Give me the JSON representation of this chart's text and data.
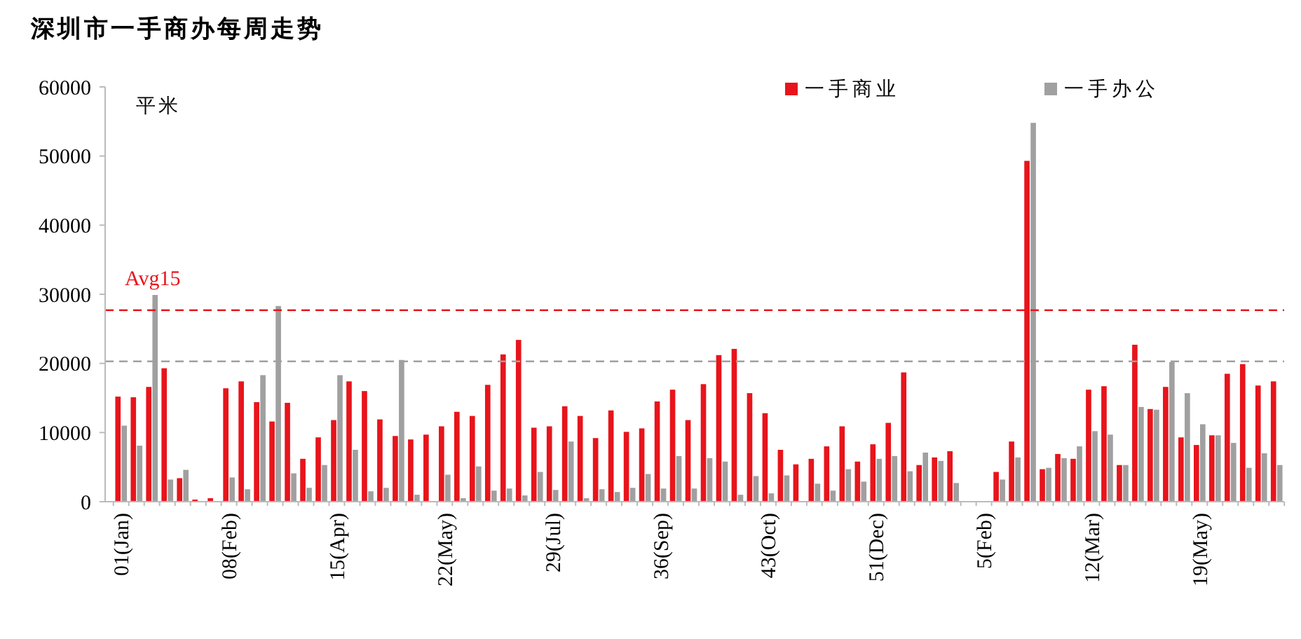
{
  "chart_data": {
    "type": "bar",
    "title": "深圳市一手商办每周走势",
    "ylabel": "平米",
    "categories": [
      "01(Jan)",
      null,
      null,
      null,
      null,
      null,
      null,
      "08(Feb)",
      null,
      null,
      null,
      null,
      null,
      null,
      "15(Apr)",
      null,
      null,
      null,
      null,
      null,
      null,
      "22(May)",
      null,
      null,
      null,
      null,
      null,
      null,
      "29(Jul)",
      null,
      null,
      null,
      null,
      null,
      null,
      "36(Sep)",
      null,
      null,
      null,
      null,
      null,
      null,
      "43(Oct)",
      null,
      null,
      null,
      null,
      null,
      null,
      "51(Dec)",
      null,
      null,
      null,
      null,
      null,
      null,
      "5(Feb)",
      null,
      null,
      null,
      null,
      null,
      null,
      "12(Mar)",
      null,
      null,
      null,
      null,
      null,
      null,
      "19(May)",
      null,
      null,
      null,
      null,
      null
    ],
    "series": [
      {
        "name": "一手商业",
        "color": "#e8141b",
        "values": [
          15200,
          15100,
          16600,
          19300,
          3400,
          300,
          500,
          16400,
          17400,
          14400,
          11600,
          14300,
          6200,
          9300,
          11800,
          17400,
          16000,
          11900,
          9500,
          9000,
          9700,
          10900,
          13000,
          12400,
          16900,
          21300,
          23400,
          10700,
          10900,
          13800,
          12400,
          9200,
          13200,
          10100,
          10600,
          14500,
          16200,
          11800,
          17000,
          21200,
          22100,
          15700,
          12800,
          7500,
          5400,
          6200,
          8000,
          10900,
          5800,
          8300,
          11400,
          18700,
          5300,
          6400,
          7300,
          0,
          0,
          4300,
          8700,
          49300,
          4700,
          6900,
          6200,
          16200,
          16700,
          5300,
          22700,
          13400,
          16600,
          9300,
          8200,
          9600,
          18500,
          19900,
          16800,
          17400
        ]
      },
      {
        "name": "一手办公",
        "color": "#a0a0a0",
        "values": [
          11000,
          8100,
          29900,
          3200,
          4600,
          100,
          0,
          3500,
          1800,
          18300,
          28300,
          4100,
          2000,
          5300,
          18300,
          7500,
          1500,
          2000,
          20500,
          1000,
          null,
          3900,
          500,
          5100,
          1600,
          1900,
          900,
          4300,
          1700,
          8700,
          500,
          1800,
          1400,
          2000,
          4000,
          1900,
          6600,
          1900,
          6300,
          5800,
          1000,
          3700,
          1200,
          3800,
          0,
          2600,
          1600,
          4700,
          2900,
          6200,
          6600,
          4400,
          7100,
          5900,
          2700,
          null,
          null,
          3200,
          6400,
          54800,
          4900,
          6300,
          8000,
          10200,
          9700,
          5300,
          13700,
          13300,
          20200,
          15700,
          11200,
          9600,
          8500,
          4900,
          7000,
          5300
        ]
      }
    ],
    "ylim": [
      0,
      60000
    ],
    "yticks": [
      0,
      10000,
      20000,
      30000,
      40000,
      50000,
      60000
    ],
    "ref_lines": [
      {
        "axis": "y",
        "value": 27700,
        "label": "Avg15",
        "color": "#e8141b",
        "line_style": "dashed"
      },
      {
        "axis": "y",
        "value": 20300,
        "label": null,
        "color": "#a0a0a0",
        "line_style": "dashed"
      }
    ],
    "legend": "top right"
  }
}
